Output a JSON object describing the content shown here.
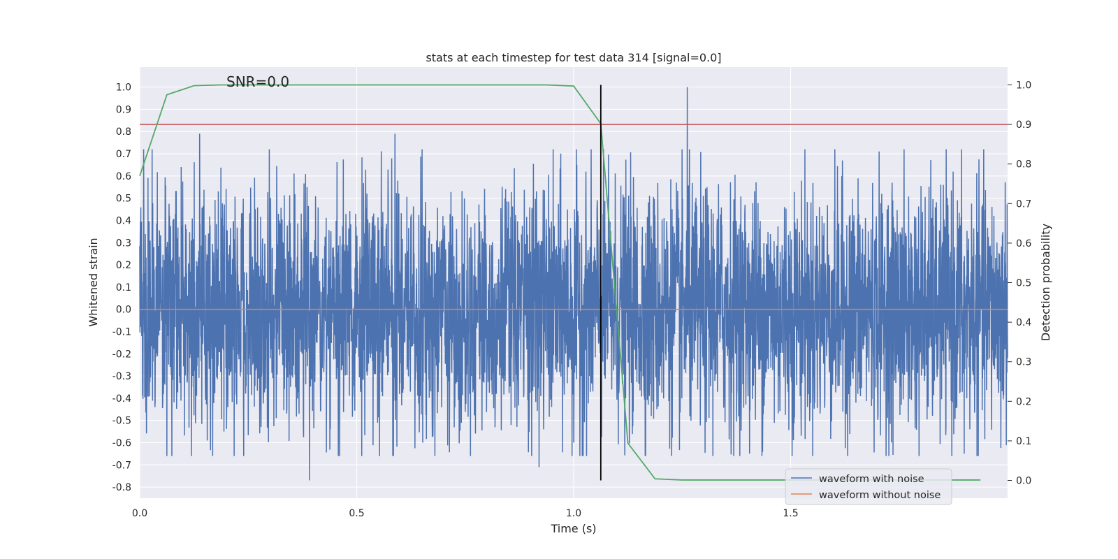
{
  "chart_data": {
    "type": "line",
    "title": "stats at each timestep for test data 314 [signal=0.0]",
    "xlabel": "Time (s)",
    "ylabel": "Whitened strain",
    "y2label": "Detection probability",
    "xlim": [
      0.0,
      2.0
    ],
    "ylim": [
      -0.85,
      1.09
    ],
    "y2lim": [
      -0.045,
      1.045
    ],
    "x_ticks": [
      "0.0",
      "0.5",
      "1.0",
      "1.5"
    ],
    "y_ticks": [
      "1.0",
      "0.9",
      "0.8",
      "0.7",
      "0.6",
      "0.5",
      "0.4",
      "0.3",
      "0.2",
      "0.1",
      "0.0",
      "-0.1",
      "-0.2",
      "-0.3",
      "-0.4",
      "-0.5",
      "-0.6",
      "-0.7",
      "-0.8"
    ],
    "y2_ticks": [
      "1.0",
      "0.9",
      "0.8",
      "0.7",
      "0.6",
      "0.5",
      "0.4",
      "0.3",
      "0.2",
      "0.1",
      "0.0"
    ],
    "annotation": "SNR=0.0",
    "grid": true,
    "legend_position": "bottom-right",
    "series": [
      {
        "name": "waveform with noise",
        "axis": "left",
        "color": "#4c72b0",
        "kind": "noise",
        "x_range": [
          0.0,
          2.0
        ],
        "approx_std": 0.27,
        "peaks": [
          [
            0.138,
            0.79
          ],
          [
            0.391,
            -0.77
          ],
          [
            0.588,
            0.79
          ],
          [
            1.262,
            1.0
          ],
          [
            0.92,
            -0.71
          ],
          [
            1.0,
            -0.6
          ],
          [
            1.9,
            -0.65
          ]
        ]
      },
      {
        "name": "waveform without noise",
        "axis": "left",
        "color": "#dd8452",
        "x": [
          0.0,
          2.0
        ],
        "values": [
          0.0,
          0.0
        ]
      },
      {
        "axis": "right",
        "color": "#55a868",
        "x": [
          0.0,
          0.0625,
          0.125,
          0.1875,
          0.25,
          0.9375,
          1.0,
          1.0625,
          1.125,
          1.1875,
          1.25,
          1.9375
        ],
        "values": [
          0.77,
          0.975,
          0.998,
          1.0,
          1.0,
          1.0,
          0.997,
          0.902,
          0.094,
          0.004,
          0.001,
          0.001
        ]
      }
    ],
    "threshold": {
      "axis": "right",
      "value": 0.9,
      "color": "#c44e52"
    },
    "vline": {
      "x": 1.0625,
      "y2_from": 0.0,
      "y2_to": 1.0,
      "color": "#000000"
    }
  }
}
